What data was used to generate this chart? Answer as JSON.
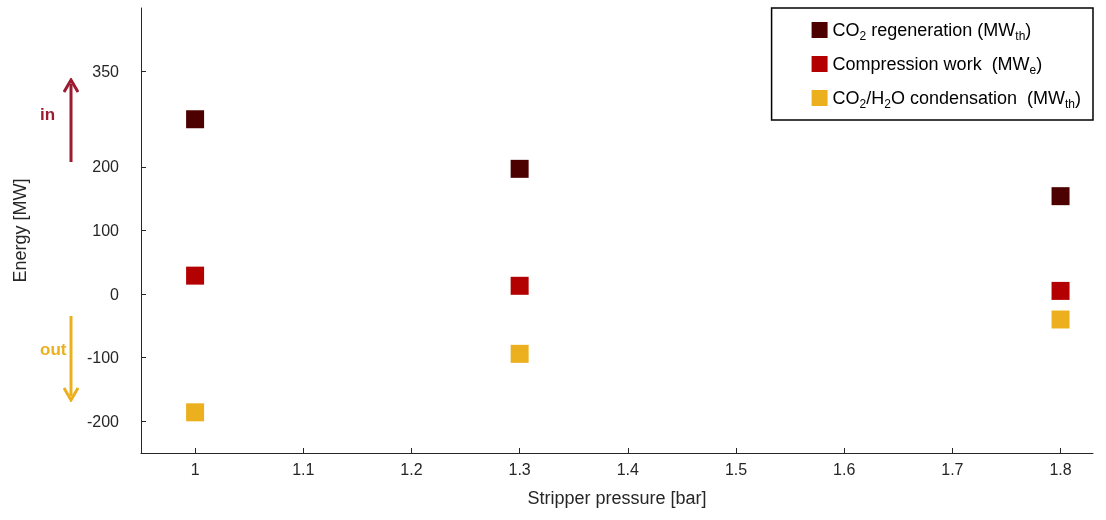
{
  "chart_data": {
    "type": "scatter",
    "xlabel": "Stripper pressure [bar]",
    "ylabel": "Energy [MW]",
    "x": [
      1,
      1.3,
      1.8
    ],
    "series": [
      {
        "name": "CO$_{2}$ regeneration (MW$_{th}$)",
        "color": "#4d0000",
        "values": [
          275,
          197,
          154
        ]
      },
      {
        "name": "Compression work  (MW$_{e}$)",
        "color": "#b30000",
        "values": [
          29,
          13,
          5
        ]
      },
      {
        "name": "CO$_{2}$/H$_{2}$O condensation  (MW$_{th}$)",
        "color": "#ecb01f",
        "values": [
          -186,
          -94,
          -40
        ]
      }
    ],
    "xlim": [
      0.95,
      1.83
    ],
    "xticks": [
      1,
      1.1,
      1.2,
      1.3,
      1.4,
      1.5,
      1.6,
      1.7,
      1.8
    ],
    "ylim": [
      -250,
      450
    ],
    "yticks": [
      -200,
      -100,
      0,
      100,
      200,
      350
    ],
    "marker": "square",
    "grid": false,
    "legend": "top right",
    "annotations": [
      "in",
      "out"
    ]
  }
}
